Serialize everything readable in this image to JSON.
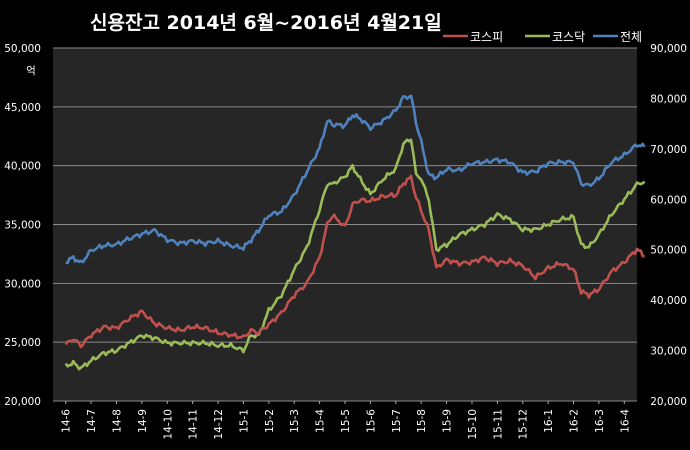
{
  "chart_data": {
    "type": "line",
    "title": "신용잔고 2014년 6월~2016년 4월21일",
    "left_axis": {
      "unit_label": "억",
      "ylim": [
        20000,
        50000
      ],
      "ticks": [
        20000,
        25000,
        30000,
        35000,
        40000,
        45000,
        50000
      ],
      "tick_labels": [
        "20,000",
        "25,000",
        "30,000",
        "35,000",
        "40,000",
        "45,000",
        "50,000"
      ]
    },
    "right_axis": {
      "ylim": [
        20000,
        90000
      ],
      "ticks": [
        20000,
        30000,
        40000,
        50000,
        60000,
        70000,
        80000,
        90000
      ],
      "tick_labels": [
        "20,000",
        "30,000",
        "40,000",
        "50,000",
        "60,000",
        "70,000",
        "80,000",
        "90,000"
      ]
    },
    "x_tick_labels": [
      "14-6",
      "14-7",
      "14-8",
      "14-9",
      "14-10",
      "14-11",
      "14-12",
      "15-1",
      "15-2",
      "15-3",
      "15-4",
      "15-5",
      "15-6",
      "15-7",
      "15-8",
      "15-9",
      "15-10",
      "15-11",
      "15-12",
      "16-1",
      "16-2",
      "16-3",
      "16-4"
    ],
    "grid": true,
    "legend_position": "top-right",
    "series": [
      {
        "name": "코스피",
        "color": "#c0504d",
        "axis": "left",
        "x": [
          0,
          0.3,
          0.6,
          1,
          1.5,
          2,
          2.5,
          3,
          3.5,
          4,
          4.5,
          5,
          5.5,
          6,
          6.5,
          7,
          7.3,
          7.6,
          8,
          8.5,
          9,
          9.5,
          10,
          10.3,
          10.5,
          11,
          11.3,
          11.6,
          12,
          12.5,
          13,
          13.3,
          13.6,
          13.8,
          14,
          14.3,
          14.6,
          15,
          15.5,
          16,
          16.5,
          17,
          17.5,
          18,
          18.5,
          19,
          19.5,
          20,
          20.3,
          20.6,
          21,
          21.5,
          22,
          22.5,
          22.8
        ],
        "y": [
          24800,
          25300,
          24700,
          25600,
          26300,
          26200,
          27000,
          27600,
          26600,
          26200,
          26000,
          26300,
          26200,
          25800,
          25600,
          25400,
          26000,
          25800,
          26500,
          27500,
          29000,
          30000,
          32200,
          35000,
          35800,
          34800,
          36700,
          37100,
          37000,
          37400,
          37500,
          38500,
          39000,
          37300,
          36200,
          34500,
          31300,
          32000,
          31700,
          31800,
          32200,
          31700,
          31900,
          31500,
          30500,
          31300,
          31700,
          31200,
          29300,
          29000,
          29500,
          31000,
          31800,
          32900,
          32300
        ]
      },
      {
        "name": "코스닥",
        "color": "#9bbb59",
        "axis": "right",
        "x": [
          0,
          0.3,
          0.6,
          1,
          1.5,
          2,
          2.5,
          3,
          3.5,
          4,
          4.5,
          5,
          5.5,
          6,
          6.5,
          7,
          7.3,
          7.6,
          8,
          8.5,
          9,
          9.5,
          10,
          10.3,
          10.5,
          11,
          11.3,
          11.6,
          12,
          12.5,
          13,
          13.3,
          13.6,
          13.8,
          14,
          14.3,
          14.6,
          15,
          15.5,
          16,
          16.5,
          17,
          17.5,
          18,
          18.5,
          19,
          19.5,
          20,
          20.3,
          20.6,
          21,
          21.5,
          22,
          22.5,
          22.8
        ],
        "y": [
          27000,
          27500,
          26500,
          28000,
          29500,
          30000,
          31500,
          33000,
          32500,
          31500,
          31500,
          31500,
          31500,
          31000,
          31000,
          30000,
          33000,
          33000,
          38000,
          41000,
          46000,
          50500,
          58000,
          63000,
          63000,
          64500,
          66500,
          64000,
          61000,
          64000,
          66000,
          71000,
          72000,
          65000,
          64000,
          60000,
          50000,
          51000,
          53000,
          54000,
          55000,
          57000,
          56000,
          54000,
          54000,
          55000,
          56000,
          56500,
          51000,
          50500,
          53000,
          57000,
          60000,
          63000,
          63500
        ]
      },
      {
        "name": "전체",
        "color": "#4f81bd",
        "axis": "left",
        "x": [
          0,
          0.3,
          0.6,
          1,
          1.5,
          2,
          2.5,
          3,
          3.5,
          4,
          4.5,
          5,
          5.5,
          6,
          6.5,
          7,
          7.3,
          7.6,
          8,
          8.5,
          9,
          9.5,
          10,
          10.3,
          10.5,
          11,
          11.3,
          11.6,
          12,
          12.5,
          13,
          13.3,
          13.6,
          13.8,
          14,
          14.3,
          14.6,
          15,
          15.5,
          16,
          16.5,
          17,
          17.5,
          18,
          18.5,
          19,
          19.5,
          20,
          20.3,
          20.6,
          21,
          21.5,
          22,
          22.5,
          22.8
        ],
        "y": [
          31800,
          32200,
          31700,
          32800,
          33200,
          33300,
          33800,
          34200,
          34500,
          33700,
          33400,
          33600,
          33400,
          33600,
          33200,
          33000,
          33700,
          34500,
          35800,
          36100,
          37500,
          39500,
          41500,
          43800,
          43500,
          43400,
          44300,
          44000,
          43200,
          43800,
          44700,
          45800,
          45900,
          43700,
          42000,
          39200,
          39000,
          39700,
          39600,
          40200,
          40300,
          40500,
          40300,
          39400,
          39500,
          40200,
          40300,
          40300,
          38500,
          38300,
          38900,
          40300,
          40900,
          41800,
          41600
        ]
      }
    ]
  }
}
